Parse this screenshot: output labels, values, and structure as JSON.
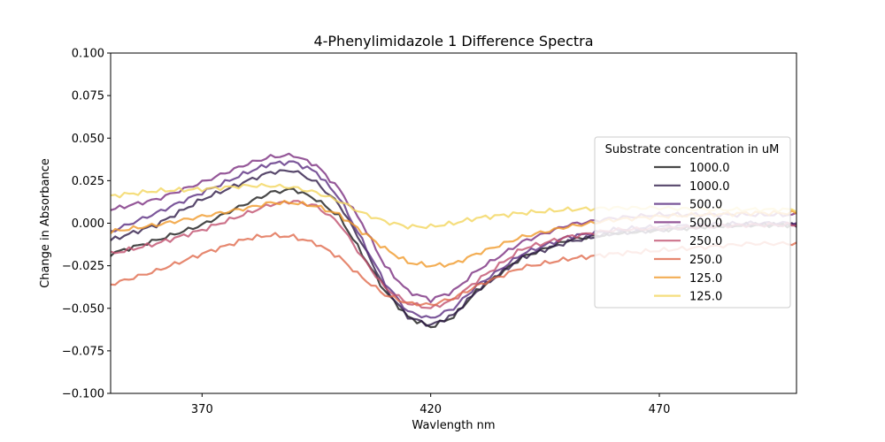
{
  "chart_data": {
    "type": "line",
    "title": "4-Phenylimidazole 1 Difference Spectra",
    "xlabel": "Wavlength nm",
    "ylabel": "Change in Absorbance",
    "xlim": [
      350,
      500
    ],
    "ylim": [
      -0.1,
      0.1
    ],
    "xticks": [
      370,
      420,
      470
    ],
    "yticks": [
      -0.1,
      -0.075,
      -0.05,
      -0.025,
      0.0,
      0.025,
      0.05,
      0.075,
      0.1
    ],
    "ytick_labels": [
      "−0.100",
      "−0.075",
      "−0.050",
      "−0.025",
      "0.000",
      "0.025",
      "0.050",
      "0.075",
      "0.100"
    ],
    "grid": false,
    "legend": {
      "title": "Substrate concentration in uM",
      "placement": "center-right"
    },
    "series": [
      {
        "name": "1000.0",
        "color": "#1a1a1a",
        "x": [
          350,
          360,
          370,
          380,
          385,
          390,
          395,
          400,
          405,
          410,
          415,
          420,
          425,
          430,
          440,
          450,
          460,
          470,
          480,
          490,
          500
        ],
        "values": [
          -0.018,
          -0.01,
          -0.001,
          0.012,
          0.018,
          0.02,
          0.014,
          0.004,
          -0.018,
          -0.04,
          -0.055,
          -0.061,
          -0.055,
          -0.04,
          -0.02,
          -0.01,
          -0.006,
          -0.004,
          -0.002,
          -0.001,
          -0.001
        ]
      },
      {
        "name": "1000.0",
        "color": "#2e1a47",
        "x": [
          350,
          360,
          370,
          380,
          385,
          390,
          395,
          400,
          405,
          410,
          415,
          420,
          425,
          430,
          440,
          450,
          460,
          470,
          480,
          490,
          500
        ],
        "values": [
          -0.01,
          -0.001,
          0.014,
          0.025,
          0.03,
          0.031,
          0.024,
          0.011,
          -0.012,
          -0.038,
          -0.055,
          -0.06,
          -0.054,
          -0.04,
          -0.02,
          -0.011,
          -0.006,
          -0.004,
          -0.002,
          -0.001,
          -0.001
        ]
      },
      {
        "name": "500.0",
        "color": "#5a2d81",
        "x": [
          350,
          360,
          370,
          380,
          385,
          390,
          395,
          400,
          405,
          410,
          415,
          420,
          425,
          430,
          440,
          450,
          460,
          470,
          480,
          490,
          500
        ],
        "values": [
          -0.005,
          0.006,
          0.018,
          0.03,
          0.035,
          0.036,
          0.03,
          0.015,
          -0.01,
          -0.035,
          -0.052,
          -0.056,
          -0.05,
          -0.037,
          -0.018,
          -0.008,
          -0.004,
          -0.002,
          -0.001,
          0.0,
          0.0
        ]
      },
      {
        "name": "500.0",
        "color": "#7a2e80",
        "x": [
          350,
          360,
          370,
          380,
          385,
          390,
          395,
          400,
          405,
          410,
          415,
          420,
          425,
          430,
          440,
          450,
          460,
          470,
          480,
          490,
          500
        ],
        "values": [
          0.008,
          0.014,
          0.024,
          0.035,
          0.039,
          0.04,
          0.034,
          0.02,
          0.0,
          -0.025,
          -0.04,
          -0.045,
          -0.04,
          -0.028,
          -0.011,
          -0.001,
          0.003,
          0.005,
          0.005,
          0.005,
          0.005
        ]
      },
      {
        "name": "250.0",
        "color": "#c0506e",
        "x": [
          350,
          360,
          370,
          380,
          385,
          390,
          395,
          400,
          405,
          410,
          415,
          420,
          425,
          430,
          440,
          450,
          460,
          470,
          480,
          490,
          500
        ],
        "values": [
          -0.018,
          -0.012,
          -0.004,
          0.006,
          0.011,
          0.013,
          0.01,
          0.0,
          -0.02,
          -0.038,
          -0.047,
          -0.05,
          -0.045,
          -0.034,
          -0.015,
          -0.008,
          -0.004,
          -0.003,
          -0.002,
          -0.001,
          -0.001
        ]
      },
      {
        "name": "250.0",
        "color": "#e06a4c",
        "x": [
          350,
          360,
          370,
          380,
          385,
          390,
          395,
          400,
          405,
          410,
          415,
          420,
          425,
          430,
          440,
          450,
          460,
          470,
          480,
          490,
          500
        ],
        "values": [
          -0.036,
          -0.028,
          -0.018,
          -0.009,
          -0.007,
          -0.008,
          -0.012,
          -0.02,
          -0.032,
          -0.042,
          -0.047,
          -0.048,
          -0.044,
          -0.037,
          -0.026,
          -0.021,
          -0.018,
          -0.016,
          -0.014,
          -0.012,
          -0.012
        ]
      },
      {
        "name": "125.0",
        "color": "#f09a2a",
        "x": [
          350,
          360,
          370,
          380,
          385,
          390,
          395,
          400,
          405,
          410,
          415,
          420,
          425,
          430,
          440,
          450,
          460,
          470,
          480,
          490,
          500
        ],
        "values": [
          -0.005,
          -0.001,
          0.004,
          0.009,
          0.012,
          0.012,
          0.01,
          0.005,
          -0.005,
          -0.015,
          -0.023,
          -0.025,
          -0.024,
          -0.018,
          -0.008,
          -0.002,
          0.002,
          0.004,
          0.005,
          0.006,
          0.006
        ]
      },
      {
        "name": "125.0",
        "color": "#f2d65e",
        "x": [
          350,
          360,
          370,
          380,
          385,
          390,
          395,
          400,
          405,
          410,
          415,
          420,
          425,
          430,
          440,
          450,
          460,
          470,
          480,
          490,
          500
        ],
        "values": [
          0.016,
          0.019,
          0.02,
          0.022,
          0.022,
          0.021,
          0.018,
          0.013,
          0.006,
          0.001,
          -0.002,
          -0.002,
          0.0,
          0.003,
          0.006,
          0.008,
          0.009,
          0.009,
          0.008,
          0.008,
          0.008
        ]
      }
    ]
  }
}
